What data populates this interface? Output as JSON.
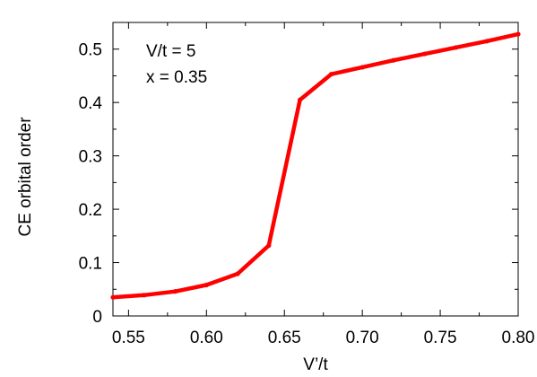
{
  "chart_data": {
    "type": "line",
    "xlabel": "V’/t",
    "ylabel": "CE orbital order",
    "xlim": [
      0.54,
      0.8
    ],
    "ylim": [
      0,
      0.55
    ],
    "x_ticks": [
      "0.55",
      "0.60",
      "0.65",
      "0.70",
      "0.75",
      "0.80"
    ],
    "y_ticks": [
      "0",
      "0.1",
      "0.2",
      "0.3",
      "0.4",
      "0.5"
    ],
    "annotations": [
      "V/t = 5",
      "x = 0.35"
    ],
    "grid": false,
    "series": [
      {
        "color": "#ff0000",
        "x": [
          0.54,
          0.56,
          0.58,
          0.6,
          0.62,
          0.64,
          0.66,
          0.68,
          0.7,
          0.72,
          0.74,
          0.76,
          0.78,
          0.8
        ],
        "y": [
          0.035,
          0.039,
          0.046,
          0.058,
          0.079,
          0.132,
          0.405,
          0.453,
          0.466,
          0.479,
          0.491,
          0.503,
          0.515,
          0.528
        ]
      }
    ]
  }
}
